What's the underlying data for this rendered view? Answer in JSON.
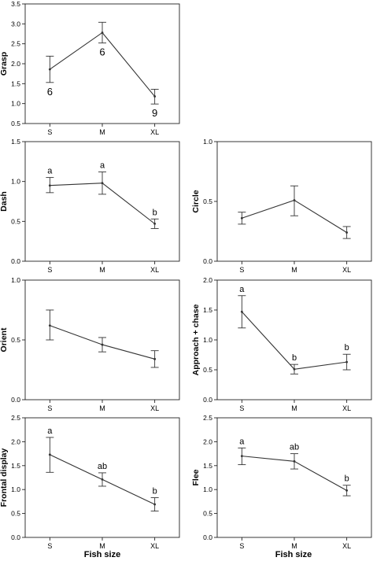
{
  "figure": {
    "xlabel": "Fish size"
  },
  "chart_data": [
    {
      "id": "grasp",
      "type": "line",
      "ylabel": "Grasp",
      "categories": [
        "S",
        "M",
        "XL"
      ],
      "values": [
        1.86,
        2.78,
        1.18
      ],
      "errors": [
        [
          1.53,
          2.19
        ],
        [
          2.52,
          3.04
        ],
        [
          0.99,
          1.36
        ]
      ],
      "ylim": [
        0.5,
        3.5
      ],
      "yticks": [
        "0.5",
        "1.0",
        "1.5",
        "2.0",
        "2.5",
        "3.0",
        "3.5"
      ],
      "labels": [
        "6",
        "6",
        "9"
      ],
      "label_pos": [
        "below",
        "below",
        "below"
      ],
      "label_style": "serif"
    },
    {
      "id": "dash",
      "type": "line",
      "ylabel": "Dash",
      "categories": [
        "S",
        "M",
        "XL"
      ],
      "values": [
        0.95,
        0.98,
        0.47
      ],
      "errors": [
        [
          0.86,
          1.05
        ],
        [
          0.84,
          1.12
        ],
        [
          0.41,
          0.53
        ]
      ],
      "ylim": [
        0,
        1.5
      ],
      "yticks": [
        "0.0",
        "0.5",
        "1.0",
        "1.5"
      ],
      "labels": [
        "a",
        "a",
        "b"
      ],
      "label_pos": [
        "above",
        "above",
        "above"
      ]
    },
    {
      "id": "circle",
      "type": "line",
      "ylabel": "Circle",
      "categories": [
        "S",
        "M",
        "XL"
      ],
      "values": [
        0.36,
        0.51,
        0.24
      ],
      "errors": [
        [
          0.31,
          0.41
        ],
        [
          0.38,
          0.63
        ],
        [
          0.19,
          0.29
        ]
      ],
      "ylim": [
        0,
        1.0
      ],
      "yticks": [
        "0.0",
        "0.5",
        "1.0"
      ],
      "labels": [],
      "label_pos": []
    },
    {
      "id": "orient",
      "type": "line",
      "ylabel": "Orient",
      "categories": [
        "S",
        "M",
        "XL"
      ],
      "values": [
        0.62,
        0.46,
        0.34
      ],
      "errors": [
        [
          0.5,
          0.75
        ],
        [
          0.4,
          0.52
        ],
        [
          0.27,
          0.41
        ]
      ],
      "ylim": [
        0,
        1.0
      ],
      "yticks": [
        "0.0",
        "0.5",
        "1.0"
      ],
      "labels": [],
      "label_pos": []
    },
    {
      "id": "approach",
      "type": "line",
      "ylabel": "Approach + chase",
      "categories": [
        "S",
        "M",
        "XL"
      ],
      "values": [
        1.47,
        0.51,
        0.63
      ],
      "errors": [
        [
          1.2,
          1.74
        ],
        [
          0.43,
          0.59
        ],
        [
          0.5,
          0.76
        ]
      ],
      "ylim": [
        0,
        2.0
      ],
      "yticks": [
        "0.0",
        "0.5",
        "1.0",
        "1.5",
        "2.0"
      ],
      "labels": [
        "a",
        "b",
        "b"
      ],
      "label_pos": [
        "above",
        "above",
        "above"
      ]
    },
    {
      "id": "frontal",
      "type": "line",
      "ylabel": "Frontal display",
      "categories": [
        "S",
        "M",
        "XL"
      ],
      "values": [
        1.73,
        1.21,
        0.69
      ],
      "errors": [
        [
          1.36,
          2.09
        ],
        [
          1.07,
          1.35
        ],
        [
          0.55,
          0.83
        ]
      ],
      "ylim": [
        0,
        2.5
      ],
      "yticks": [
        "0.0",
        "0.5",
        "1.0",
        "1.5",
        "2.0",
        "2.5"
      ],
      "labels": [
        "a",
        "ab",
        "b"
      ],
      "label_pos": [
        "above",
        "above",
        "above"
      ]
    },
    {
      "id": "flee",
      "type": "line",
      "ylabel": "Flee",
      "categories": [
        "S",
        "M",
        "XL"
      ],
      "values": [
        1.7,
        1.59,
        0.98
      ],
      "errors": [
        [
          1.52,
          1.87
        ],
        [
          1.43,
          1.75
        ],
        [
          0.87,
          1.09
        ]
      ],
      "ylim": [
        0,
        2.5
      ],
      "yticks": [
        "0.0",
        "0.5",
        "1.0",
        "1.5",
        "2.0",
        "2.5"
      ],
      "labels": [
        "a",
        "ab",
        "b"
      ],
      "label_pos": [
        "above",
        "above",
        "above"
      ]
    }
  ]
}
